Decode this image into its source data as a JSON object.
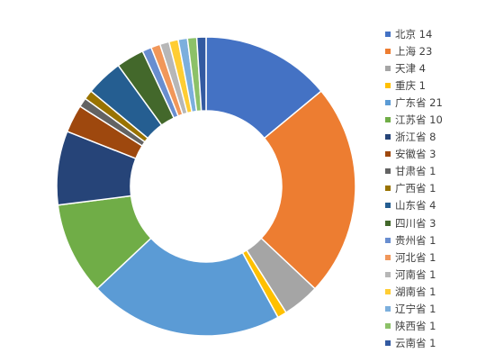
{
  "chart_data": {
    "type": "pie",
    "donut": true,
    "title": "",
    "legend_position": "right",
    "slice_border_color": "#ffffff",
    "slices": [
      {
        "label": "北京 14",
        "name": "北京",
        "value": 14,
        "color": "#4472C4"
      },
      {
        "label": "上海 23",
        "name": "上海",
        "value": 23,
        "color": "#ED7D31"
      },
      {
        "label": "天津 4",
        "name": "天津",
        "value": 4,
        "color": "#A5A5A5"
      },
      {
        "label": "重庆 1",
        "name": "重庆",
        "value": 1,
        "color": "#FFC000"
      },
      {
        "label": "广东省 21",
        "name": "广东省",
        "value": 21,
        "color": "#5B9BD5"
      },
      {
        "label": "江苏省 10",
        "name": "江苏省",
        "value": 10,
        "color": "#70AD47"
      },
      {
        "label": "浙江省 8",
        "name": "浙江省",
        "value": 8,
        "color": "#264478"
      },
      {
        "label": "安徽省 3",
        "name": "安徽省",
        "value": 3,
        "color": "#9E480E"
      },
      {
        "label": "甘肃省 1",
        "name": "甘肃省",
        "value": 1,
        "color": "#636363"
      },
      {
        "label": "广西省 1",
        "name": "广西省",
        "value": 1,
        "color": "#997300"
      },
      {
        "label": "山东省 4",
        "name": "山东省",
        "value": 4,
        "color": "#255E91"
      },
      {
        "label": "四川省 3",
        "name": "四川省",
        "value": 3,
        "color": "#43682B"
      },
      {
        "label": "贵州省 1",
        "name": "贵州省",
        "value": 1,
        "color": "#698ED0"
      },
      {
        "label": "河北省 1",
        "name": "河北省",
        "value": 1,
        "color": "#F1975A"
      },
      {
        "label": "河南省 1",
        "name": "河南省",
        "value": 1,
        "color": "#B7B7B7"
      },
      {
        "label": "湖南省 1",
        "name": "湖南省",
        "value": 1,
        "color": "#FFCD33"
      },
      {
        "label": "辽宁省 1",
        "name": "辽宁省",
        "value": 1,
        "color": "#7CAFDD"
      },
      {
        "label": "陕西省 1",
        "name": "陕西省",
        "value": 1,
        "color": "#8CC168"
      },
      {
        "label": "云南省 1",
        "name": "云南省",
        "value": 1,
        "color": "#335AA1"
      }
    ]
  }
}
